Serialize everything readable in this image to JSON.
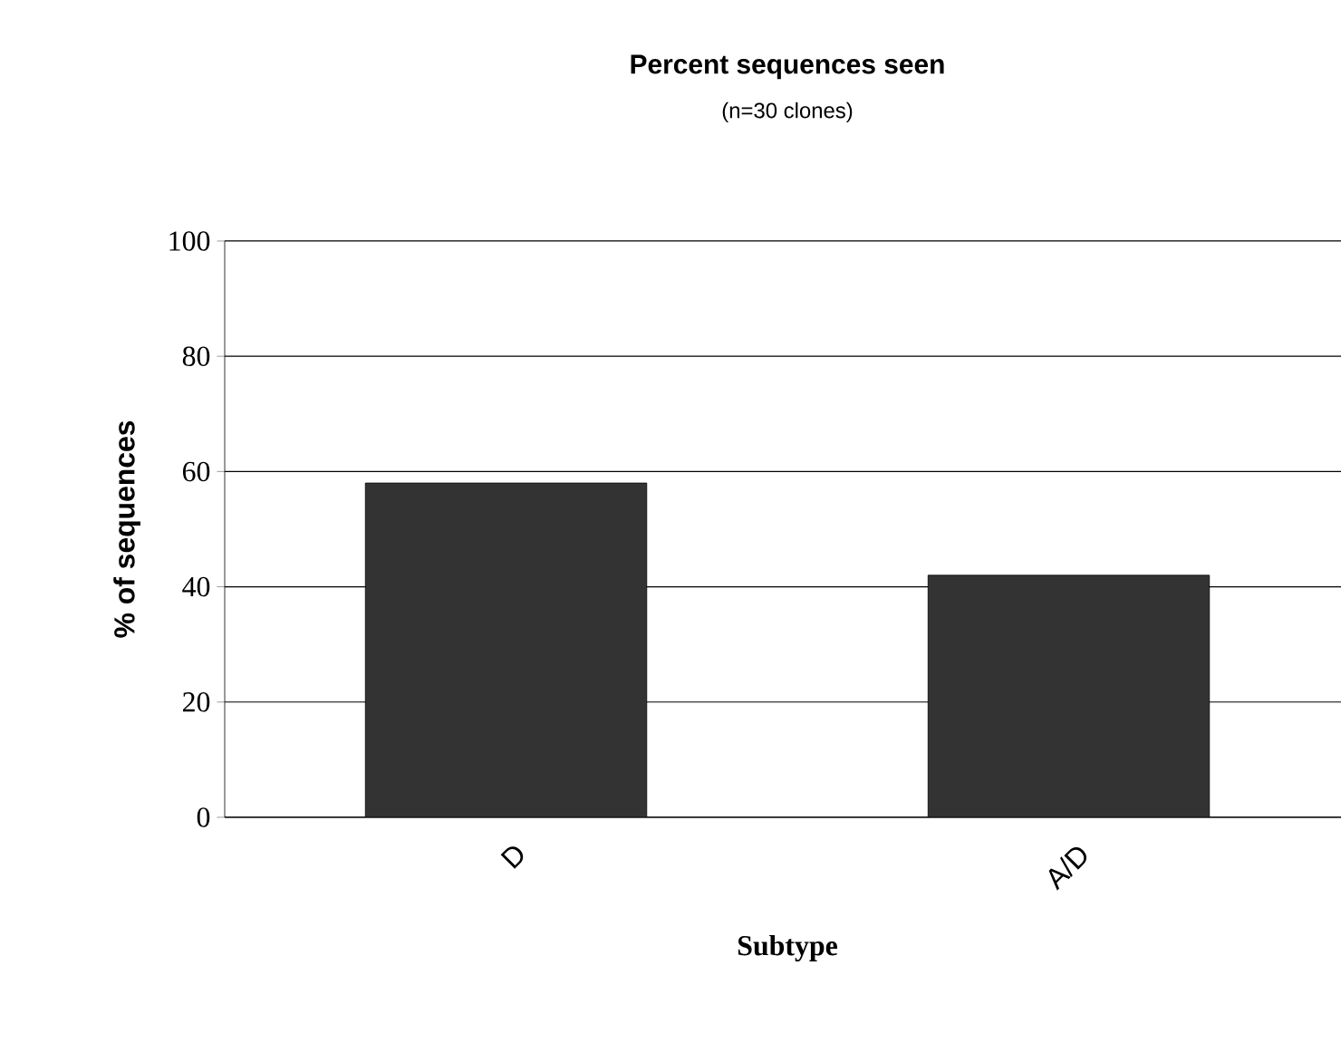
{
  "chart_data": {
    "type": "bar",
    "title": "Percent sequences seen",
    "subtitle": "(n=30 clones)",
    "xlabel": "Subtype",
    "ylabel": "% of sequences",
    "categories": [
      "D",
      "A/D"
    ],
    "values": [
      58,
      42
    ],
    "color": "#333333",
    "ylim": [
      0,
      100
    ],
    "yticks": [
      0,
      20,
      40,
      60,
      80,
      100
    ],
    "grid": "y"
  }
}
